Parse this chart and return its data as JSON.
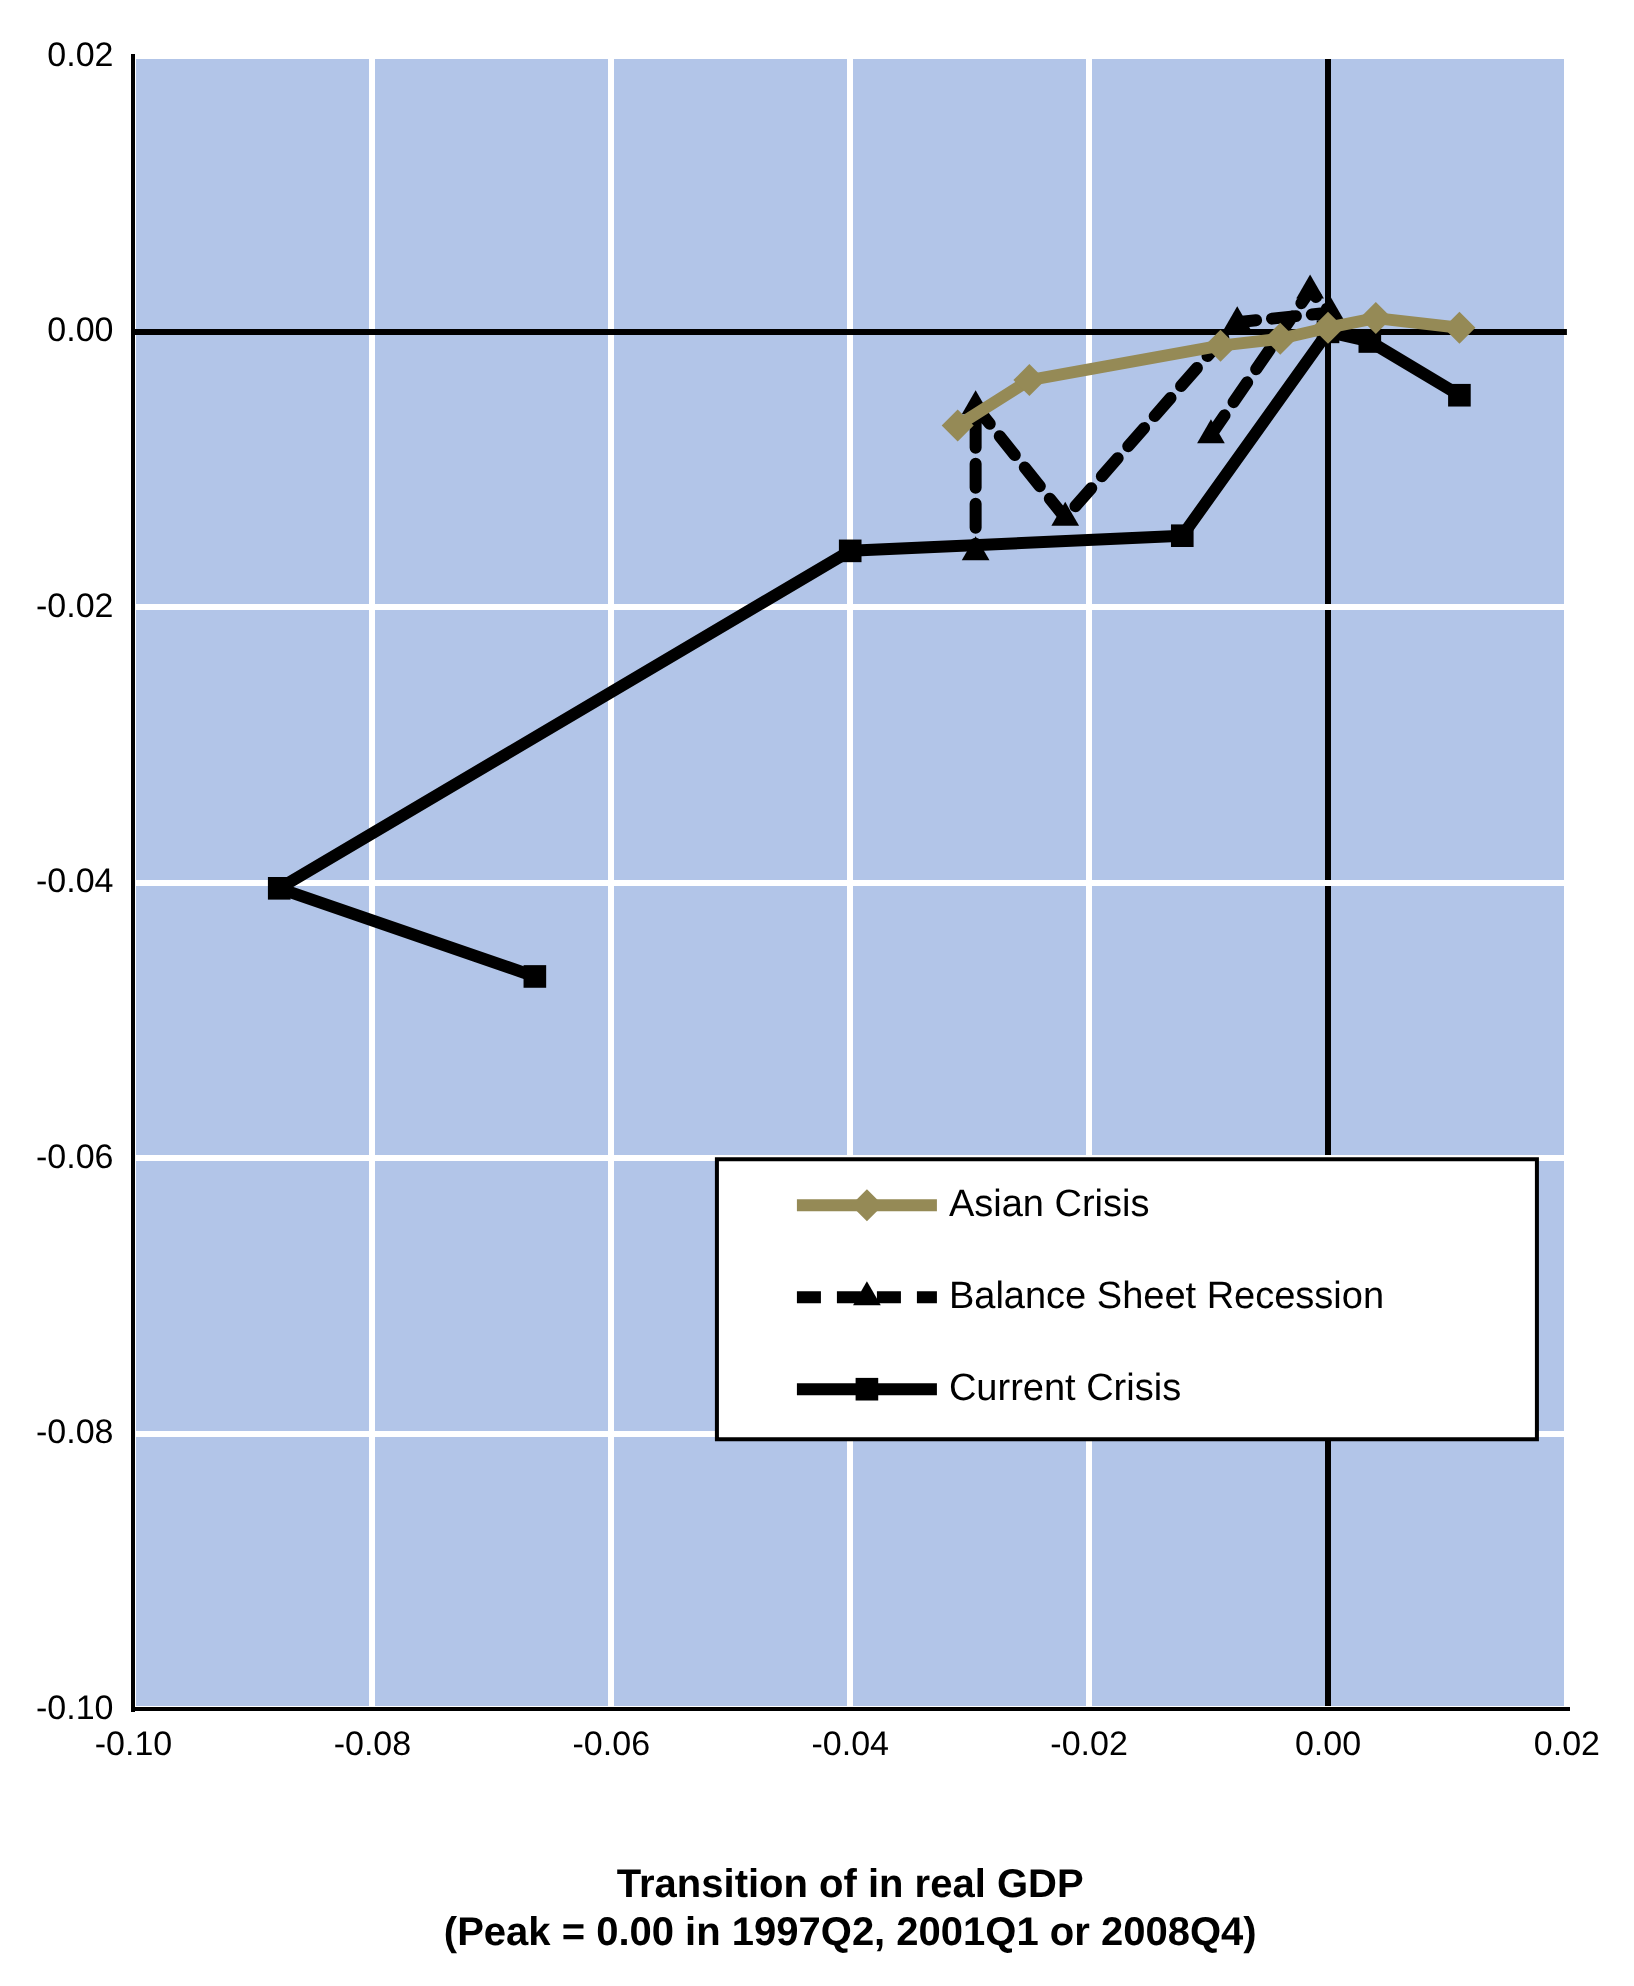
{
  "chart_data": {
    "type": "line",
    "xlabel": "Transition of in real GDP\n(Peak = 0.00 in 1997Q2, 2001Q1 or 2008Q4)",
    "xlim": [
      -0.1,
      0.02
    ],
    "xticks": [
      {
        "value": -0.1,
        "label": "-0.10"
      },
      {
        "value": -0.08,
        "label": "-0.08"
      },
      {
        "value": -0.06,
        "label": "-0.06"
      },
      {
        "value": -0.04,
        "label": "-0.04"
      },
      {
        "value": -0.02,
        "label": "-0.02"
      },
      {
        "value": 0,
        "label": "0.00"
      },
      {
        "value": 0.02,
        "label": "0.02"
      }
    ],
    "ylim": [
      -0.1,
      0.02
    ],
    "yticks": [
      {
        "value": -0.1,
        "label": "-0.10"
      },
      {
        "value": -0.08,
        "label": "-0.08"
      },
      {
        "value": -0.06,
        "label": "-0.06"
      },
      {
        "value": -0.04,
        "label": "-0.04"
      },
      {
        "value": -0.02,
        "label": "-0.02"
      },
      {
        "value": 0,
        "label": "0.00"
      },
      {
        "value": 0.02,
        "label": "0.02"
      }
    ],
    "grid": true,
    "legend": "bottom right",
    "series": [
      {
        "name": "Asian Crisis",
        "color": "#958a56",
        "marker": "diamond",
        "line_style": "solid",
        "x": [
          0.011,
          0.004,
          0,
          -0.004,
          -0.009,
          -0.025,
          -0.031
        ],
        "values": [
          0.0003,
          0.001,
          0.0003,
          -0.0005,
          -0.001,
          -0.0035,
          -0.0068
        ]
      },
      {
        "name": "Balance Sheet Recession",
        "color": "#000000",
        "marker": "triangle",
        "line_style": "dashed",
        "x": [
          -0.0098,
          -0.0015,
          0.0002,
          -0.0076,
          -0.022,
          -0.0295,
          -0.0295
        ],
        "values": [
          -0.0075,
          0.003,
          0.0014,
          0.0007,
          -0.0135,
          -0.0054,
          -0.016
        ]
      },
      {
        "name": "Current Crisis",
        "color": "#000000",
        "marker": "square",
        "line_style": "solid",
        "x": [
          0.011,
          0.0035,
          0,
          -0.0122,
          -0.04,
          -0.0878,
          -0.0664
        ],
        "values": [
          -0.0046,
          -0.0007,
          0,
          -0.0148,
          -0.0159,
          -0.0404,
          -0.0468
        ]
      }
    ]
  }
}
